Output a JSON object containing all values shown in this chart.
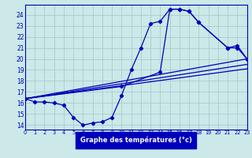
{
  "xlabel": "Graphe des températures (°c)",
  "background_color": "#cce8e8",
  "grid_color": "#aacccc",
  "line_color": "#0000bb",
  "x_ticks": [
    0,
    1,
    2,
    3,
    4,
    5,
    6,
    7,
    8,
    9,
    10,
    11,
    12,
    13,
    14,
    15,
    16,
    17,
    18,
    19,
    20,
    21,
    22,
    23
  ],
  "y_ticks": [
    14,
    15,
    16,
    17,
    18,
    19,
    20,
    21,
    22,
    23,
    24
  ],
  "xlim": [
    0,
    23
  ],
  "ylim": [
    13.6,
    24.9
  ],
  "curve1_x": [
    0,
    1,
    2,
    3,
    4,
    5,
    6,
    7,
    8,
    9,
    10,
    11,
    12,
    13,
    14,
    15,
    16,
    17,
    18,
    21,
    22,
    23
  ],
  "curve1_y": [
    16.4,
    16.1,
    16.1,
    16.0,
    15.8,
    14.7,
    14.0,
    14.2,
    14.3,
    14.7,
    16.7,
    19.0,
    21.0,
    23.2,
    23.4,
    24.5,
    24.5,
    24.3,
    23.3,
    21.0,
    21.0,
    20.0
  ],
  "curve2_x": [
    0,
    10,
    14,
    15,
    16,
    17,
    18,
    21,
    22,
    23
  ],
  "curve2_y": [
    16.4,
    17.5,
    18.8,
    24.5,
    24.5,
    24.3,
    23.3,
    21.0,
    21.2,
    20.0
  ],
  "line1_x": [
    0,
    23
  ],
  "line1_y": [
    16.4,
    20.0
  ],
  "line2_x": [
    0,
    23
  ],
  "line2_y": [
    16.4,
    19.5
  ],
  "line3_x": [
    0,
    23
  ],
  "line3_y": [
    16.4,
    19.1
  ]
}
